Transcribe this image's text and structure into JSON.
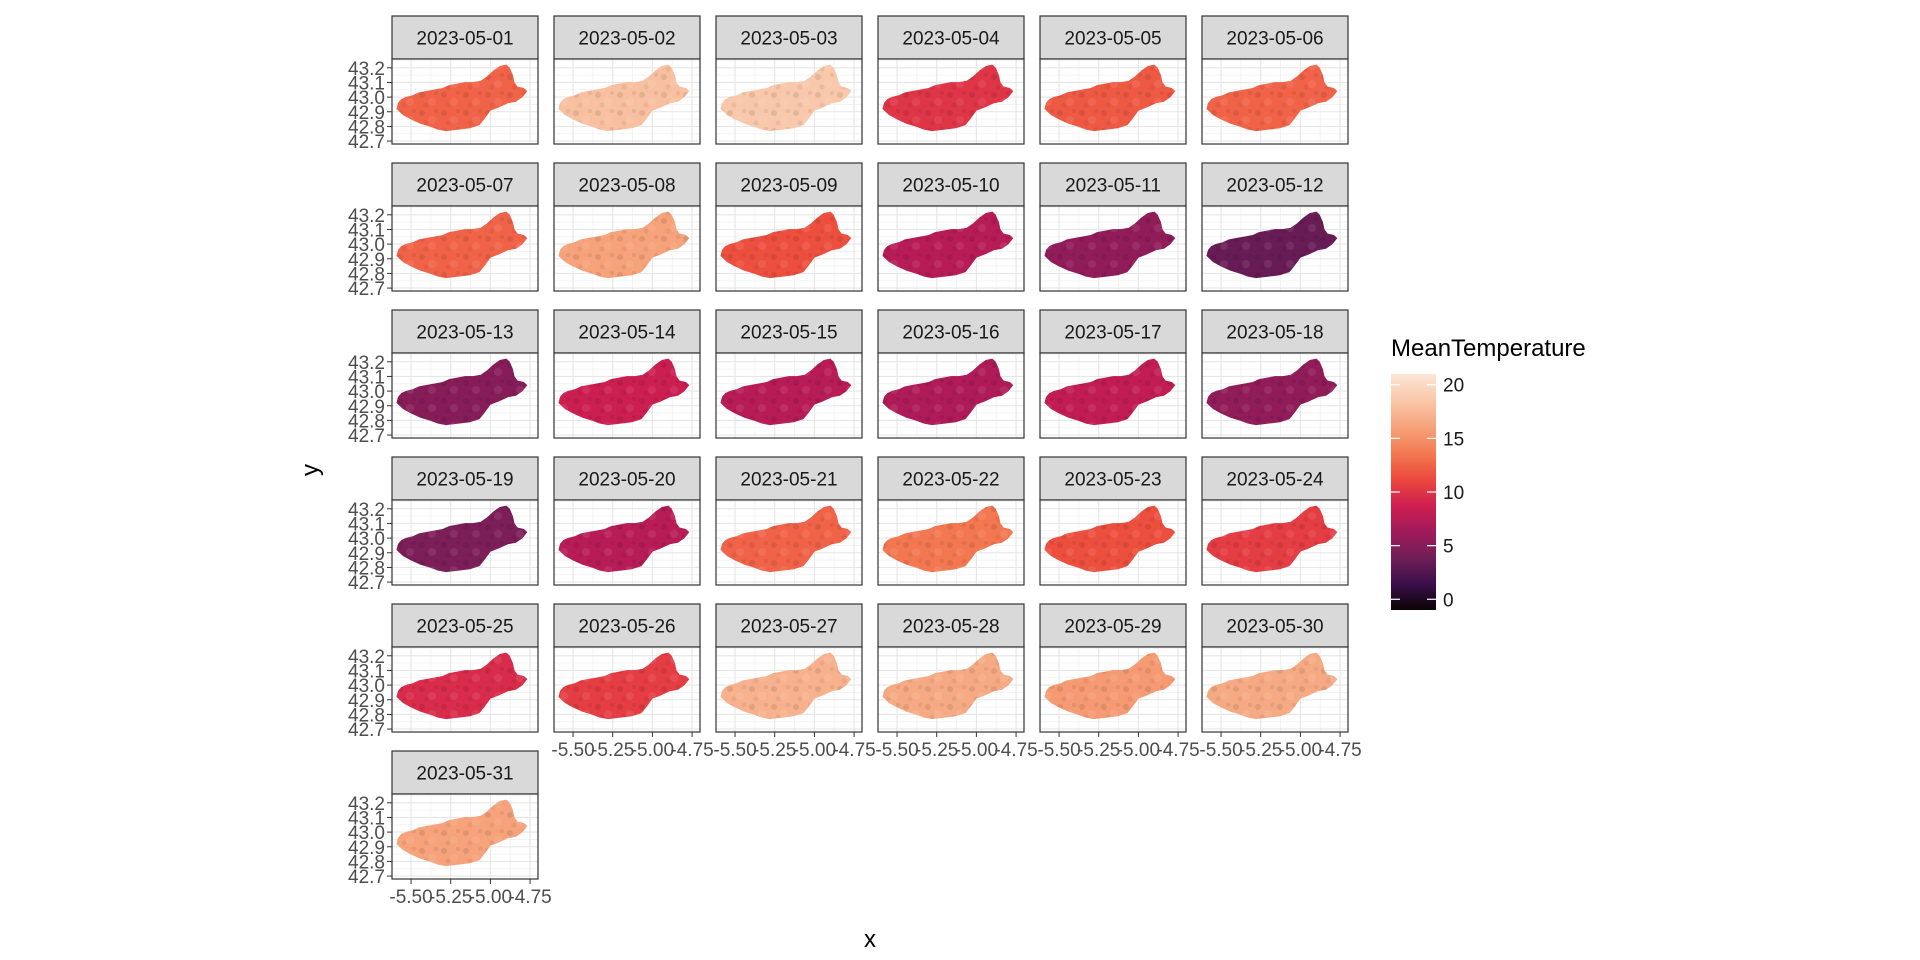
{
  "chart_data": {
    "type": "heatmap",
    "subtype": "faceted-raster-map",
    "xlabel": "x",
    "ylabel": "y",
    "x_ticks": [
      "-5.50",
      "-5.25",
      "-5.00",
      "-4.75"
    ],
    "y_ticks": [
      "43.2",
      "43.1",
      "43.0",
      "42.9",
      "42.8",
      "42.7"
    ],
    "x_range": [
      -5.62,
      -4.7
    ],
    "y_range": [
      42.68,
      43.26
    ],
    "grid": true,
    "legend": {
      "title": "MeanTemperature",
      "position": "right",
      "min": -1,
      "max": 21,
      "breaks": [
        0,
        5,
        10,
        15,
        20
      ],
      "break_labels": [
        "0",
        "5",
        "10",
        "15",
        "20"
      ],
      "colors": [
        "#0b0405",
        "#3b0f4b",
        "#701f57",
        "#a11a5b",
        "#d01f50",
        "#ec4a3d",
        "#f37a52",
        "#f6a47c",
        "#f9c8aa",
        "#fce6d6"
      ]
    },
    "facets": [
      {
        "label": "2023-05-01",
        "mean_temperature": 12.5
      },
      {
        "label": "2023-05-02",
        "mean_temperature": 18.0
      },
      {
        "label": "2023-05-03",
        "mean_temperature": 18.5
      },
      {
        "label": "2023-05-04",
        "mean_temperature": 10.0
      },
      {
        "label": "2023-05-05",
        "mean_temperature": 12.0
      },
      {
        "label": "2023-05-06",
        "mean_temperature": 12.5
      },
      {
        "label": "2023-05-07",
        "mean_temperature": 12.5
      },
      {
        "label": "2023-05-08",
        "mean_temperature": 16.0
      },
      {
        "label": "2023-05-09",
        "mean_temperature": 11.5
      },
      {
        "label": "2023-05-10",
        "mean_temperature": 7.5
      },
      {
        "label": "2023-05-11",
        "mean_temperature": 5.5
      },
      {
        "label": "2023-05-12",
        "mean_temperature": 3.5
      },
      {
        "label": "2023-05-13",
        "mean_temperature": 5.0
      },
      {
        "label": "2023-05-14",
        "mean_temperature": 8.5
      },
      {
        "label": "2023-05-15",
        "mean_temperature": 7.5
      },
      {
        "label": "2023-05-16",
        "mean_temperature": 7.0
      },
      {
        "label": "2023-05-17",
        "mean_temperature": 8.0
      },
      {
        "label": "2023-05-18",
        "mean_temperature": 5.5
      },
      {
        "label": "2023-05-19",
        "mean_temperature": 4.5
      },
      {
        "label": "2023-05-20",
        "mean_temperature": 7.5
      },
      {
        "label": "2023-05-21",
        "mean_temperature": 12.5
      },
      {
        "label": "2023-05-22",
        "mean_temperature": 13.5
      },
      {
        "label": "2023-05-23",
        "mean_temperature": 11.5
      },
      {
        "label": "2023-05-24",
        "mean_temperature": 10.5
      },
      {
        "label": "2023-05-25",
        "mean_temperature": 9.5
      },
      {
        "label": "2023-05-26",
        "mean_temperature": 10.5
      },
      {
        "label": "2023-05-27",
        "mean_temperature": 17.0
      },
      {
        "label": "2023-05-28",
        "mean_temperature": 16.5
      },
      {
        "label": "2023-05-29",
        "mean_temperature": 15.5
      },
      {
        "label": "2023-05-30",
        "mean_temperature": 16.5
      },
      {
        "label": "2023-05-31",
        "mean_temperature": 16.0
      }
    ]
  }
}
